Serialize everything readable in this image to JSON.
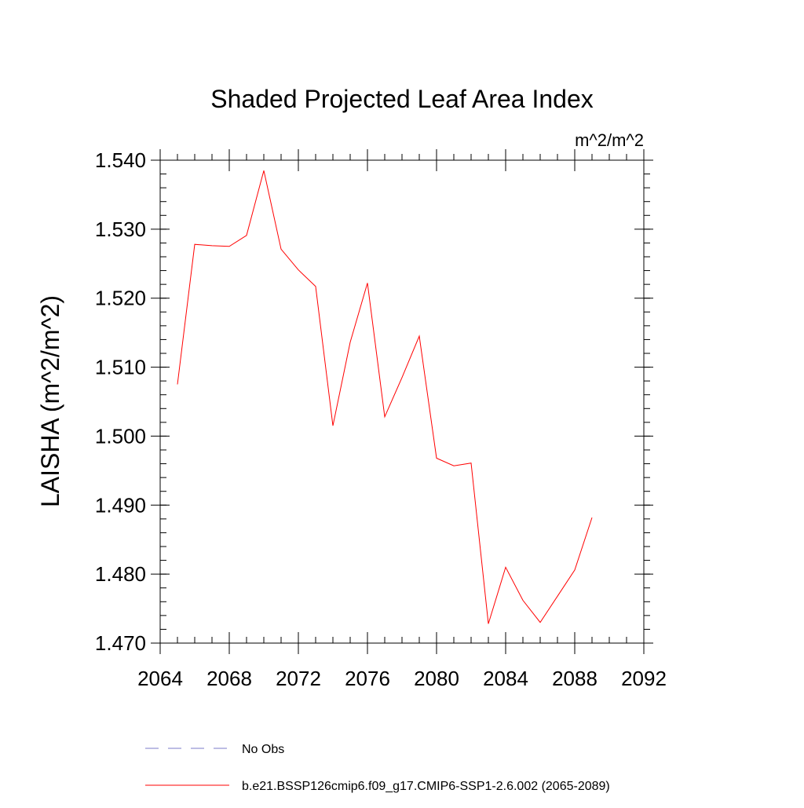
{
  "chart_data": {
    "type": "line",
    "title": "Shaded Projected Leaf Area Index",
    "units_label": "m^2/m^2",
    "ylabel": "LAISHA  (m^2/m^2)",
    "xlabel": "",
    "xlim": [
      2064,
      2092
    ],
    "ylim": [
      1.47,
      1.54
    ],
    "x_ticks": [
      2064,
      2068,
      2072,
      2076,
      2080,
      2084,
      2088,
      2092
    ],
    "x_tick_labels": [
      "2064",
      "2068",
      "2072",
      "2076",
      "2080",
      "2084",
      "2088",
      "2092"
    ],
    "y_ticks": [
      1.47,
      1.48,
      1.49,
      1.5,
      1.51,
      1.52,
      1.53,
      1.54
    ],
    "y_tick_labels": [
      "1.470",
      "1.480",
      "1.490",
      "1.500",
      "1.510",
      "1.520",
      "1.530",
      "1.540"
    ],
    "grid": false,
    "legend_position": "bottom",
    "series": [
      {
        "name": "b.e21.BSSP126cmip6.f09_g17.CMIP6-SSP1-2.6.002 (2065-2089)",
        "color": "#ff0000",
        "x": [
          2065,
          2066,
          2067,
          2068,
          2069,
          2070,
          2071,
          2072,
          2073,
          2074,
          2075,
          2076,
          2077,
          2078,
          2079,
          2080,
          2081,
          2082,
          2083,
          2084,
          2085,
          2086,
          2087,
          2088,
          2089
        ],
        "y": [
          1.5075,
          1.5278,
          1.5276,
          1.5275,
          1.5291,
          1.5385,
          1.5271,
          1.5241,
          1.5217,
          1.5015,
          1.5136,
          1.5222,
          1.5028,
          1.5085,
          1.5145,
          1.4968,
          1.4957,
          1.4961,
          1.4728,
          1.481,
          1.4762,
          1.473,
          1.4768,
          1.4806,
          1.4882
        ]
      }
    ],
    "legend": [
      {
        "label": "No Obs",
        "color": "#7b7bc9",
        "dashed": true
      },
      {
        "label": "b.e21.BSSP126cmip6.f09_g17.CMIP6-SSP1-2.6.002 (2065-2089)",
        "color": "#ff0000",
        "dashed": false
      }
    ]
  }
}
